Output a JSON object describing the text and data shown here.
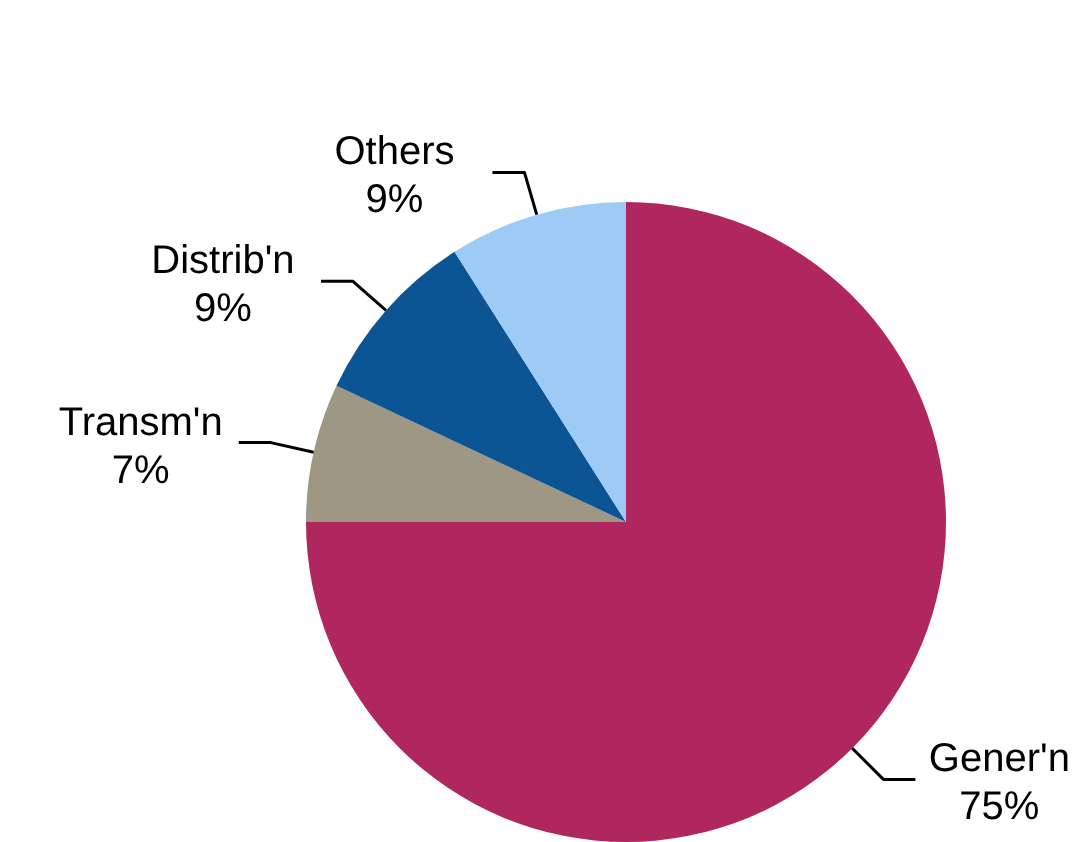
{
  "chart_data": {
    "type": "pie",
    "categories": [
      "Gener'n",
      "Transm'n",
      "Distrib'n",
      "Others"
    ],
    "values": [
      75,
      7,
      9,
      9
    ],
    "colors": [
      "#b0265e",
      "#9e9784",
      "#0b5594",
      "#9ecaf6"
    ],
    "value_labels": [
      "75%",
      "7%",
      "9%",
      "9%"
    ]
  }
}
